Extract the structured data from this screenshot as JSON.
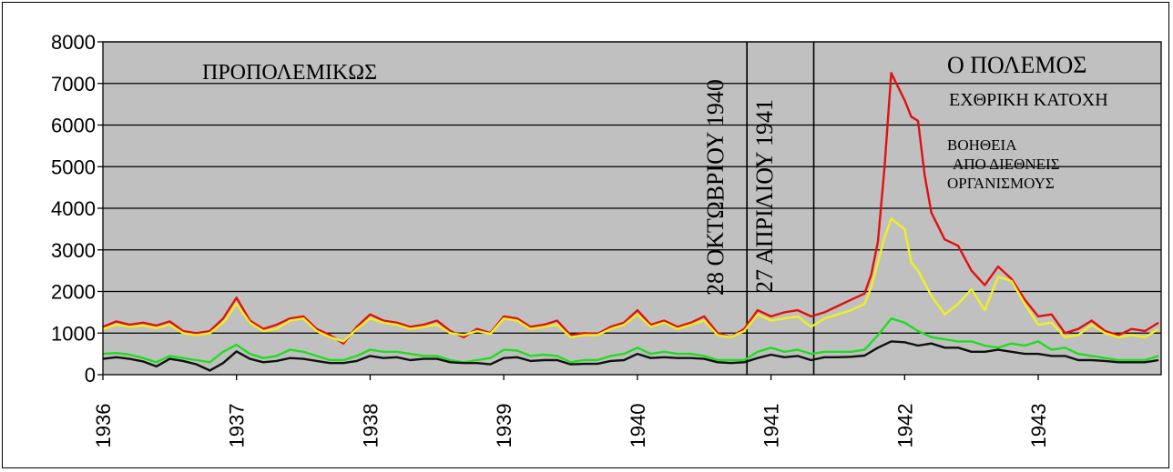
{
  "chart_data": {
    "type": "line",
    "title": "",
    "xlabel": "",
    "ylabel": "",
    "ylim": [
      0,
      8000
    ],
    "xlim": [
      1936,
      1943.92
    ],
    "yticks": [
      0,
      1000,
      2000,
      3000,
      4000,
      5000,
      6000,
      7000,
      8000
    ],
    "xticks": [
      1936,
      1937,
      1938,
      1939,
      1940,
      1941,
      1942,
      1943
    ],
    "grid": true,
    "legend": "none",
    "plot_background": "#c0c0c0",
    "vlines": [
      1940.82,
      1941.32
    ],
    "annotations": {
      "prewar": "ΠΡΟΠΟΛΕΜΙΚΩΣ",
      "war": "Ο ΠΟΛΕΜΟΣ",
      "occupation": "ΕΧΘΡΙΚΗ ΚΑΤΟΧΗ",
      "aid_line1": "ΒΟΗΘΕΙΑ",
      "aid_line2": "ΑΠΟ ΔΙΕΘΝΕΙΣ",
      "aid_line3": "ΟΡΓΑΝΙΣΜΟΥΣ",
      "date1": "28 ΟΚΤΩΒΡΙΟΥ 1940",
      "date2": "27 ΑΠΡΙΛΙΟΥ 1941"
    },
    "series": [
      {
        "color": "#e01010",
        "x": [
          1936.0,
          1936.1,
          1936.2,
          1936.3,
          1936.4,
          1936.5,
          1936.6,
          1936.7,
          1936.8,
          1936.9,
          1937.0,
          1937.1,
          1937.2,
          1937.3,
          1937.4,
          1937.5,
          1937.6,
          1937.7,
          1937.8,
          1937.9,
          1938.0,
          1938.1,
          1938.2,
          1938.3,
          1938.4,
          1938.5,
          1938.6,
          1938.7,
          1938.8,
          1938.9,
          1939.0,
          1939.1,
          1939.2,
          1939.3,
          1939.4,
          1939.5,
          1939.6,
          1939.7,
          1939.8,
          1939.9,
          1940.0,
          1940.1,
          1940.2,
          1940.3,
          1940.4,
          1940.5,
          1940.6,
          1940.7,
          1940.8,
          1940.9,
          1941.0,
          1941.1,
          1941.2,
          1941.3,
          1941.4,
          1941.5,
          1941.6,
          1941.7,
          1941.75,
          1941.8,
          1941.85,
          1941.9,
          1942.0,
          1942.05,
          1942.1,
          1942.15,
          1942.2,
          1942.3,
          1942.4,
          1942.5,
          1942.6,
          1942.7,
          1942.8,
          1942.9,
          1943.0,
          1943.1,
          1943.2,
          1943.3,
          1943.4,
          1943.5,
          1943.6,
          1943.7,
          1943.8,
          1943.9
        ],
        "values": [
          1150,
          1280,
          1200,
          1250,
          1180,
          1280,
          1050,
          1000,
          1050,
          1350,
          1850,
          1300,
          1100,
          1200,
          1350,
          1400,
          1100,
          950,
          750,
          1150,
          1450,
          1300,
          1250,
          1150,
          1200,
          1300,
          1050,
          900,
          1100,
          1000,
          1400,
          1350,
          1150,
          1200,
          1300,
          950,
          1000,
          980,
          1150,
          1250,
          1550,
          1200,
          1300,
          1150,
          1250,
          1400,
          1000,
          900,
          1100,
          1550,
          1400,
          1500,
          1550,
          1400,
          1500,
          1650,
          1800,
          1950,
          2400,
          3200,
          5000,
          7250,
          6600,
          6200,
          6100,
          4800,
          3900,
          3250,
          3100,
          2500,
          2150,
          2600,
          2300,
          1800,
          1400,
          1450,
          1000,
          1100,
          1300,
          1050,
          950,
          1100,
          1050,
          1250
        ]
      },
      {
        "color": "#f0f020",
        "x": [
          1936.0,
          1936.1,
          1936.2,
          1936.3,
          1936.4,
          1936.5,
          1936.6,
          1936.7,
          1936.8,
          1936.9,
          1937.0,
          1937.1,
          1937.2,
          1937.3,
          1937.4,
          1937.5,
          1937.6,
          1937.7,
          1937.8,
          1937.9,
          1938.0,
          1938.1,
          1938.2,
          1938.3,
          1938.4,
          1938.5,
          1938.6,
          1938.7,
          1938.8,
          1938.9,
          1939.0,
          1939.1,
          1939.2,
          1939.3,
          1939.4,
          1939.5,
          1939.6,
          1939.7,
          1939.8,
          1939.9,
          1940.0,
          1940.1,
          1940.2,
          1940.3,
          1940.4,
          1940.5,
          1940.6,
          1940.7,
          1940.8,
          1940.9,
          1941.0,
          1941.1,
          1941.2,
          1941.3,
          1941.4,
          1941.5,
          1941.6,
          1941.7,
          1941.75,
          1941.8,
          1941.85,
          1941.9,
          1942.0,
          1942.05,
          1942.1,
          1942.15,
          1942.2,
          1942.3,
          1942.4,
          1942.5,
          1942.6,
          1942.7,
          1942.8,
          1942.9,
          1943.0,
          1943.1,
          1943.2,
          1943.3,
          1943.4,
          1943.5,
          1943.6,
          1943.7,
          1943.8,
          1943.9
        ],
        "values": [
          1100,
          1200,
          1150,
          1180,
          1120,
          1200,
          1000,
          950,
          1000,
          1250,
          1700,
          1250,
          1050,
          1100,
          1300,
          1350,
          1050,
          900,
          800,
          1100,
          1350,
          1250,
          1200,
          1100,
          1150,
          1200,
          1000,
          950,
          1050,
          980,
          1350,
          1300,
          1100,
          1150,
          1200,
          900,
          950,
          950,
          1100,
          1200,
          1450,
          1150,
          1250,
          1100,
          1200,
          1300,
          950,
          900,
          1050,
          1450,
          1300,
          1350,
          1400,
          1150,
          1350,
          1450,
          1550,
          1700,
          2100,
          2700,
          3300,
          3750,
          3500,
          2700,
          2500,
          2200,
          1900,
          1450,
          1700,
          2050,
          1550,
          2350,
          2250,
          1700,
          1200,
          1250,
          900,
          950,
          1200,
          1000,
          900,
          950,
          900,
          1100
        ]
      },
      {
        "color": "#20dd20",
        "x": [
          1936.0,
          1936.1,
          1936.2,
          1936.3,
          1936.4,
          1936.5,
          1936.6,
          1936.7,
          1936.8,
          1936.9,
          1937.0,
          1937.1,
          1937.2,
          1937.3,
          1937.4,
          1937.5,
          1937.6,
          1937.7,
          1937.8,
          1937.9,
          1938.0,
          1938.1,
          1938.2,
          1938.3,
          1938.4,
          1938.5,
          1938.6,
          1938.7,
          1938.8,
          1938.9,
          1939.0,
          1939.1,
          1939.2,
          1939.3,
          1939.4,
          1939.5,
          1939.6,
          1939.7,
          1939.8,
          1939.9,
          1940.0,
          1940.1,
          1940.2,
          1940.3,
          1940.4,
          1940.5,
          1940.6,
          1940.7,
          1940.8,
          1940.9,
          1941.0,
          1941.1,
          1941.2,
          1941.3,
          1941.4,
          1941.5,
          1941.6,
          1941.7,
          1941.8,
          1941.9,
          1942.0,
          1942.1,
          1942.2,
          1942.3,
          1942.4,
          1942.5,
          1942.6,
          1942.7,
          1942.8,
          1942.9,
          1943.0,
          1943.1,
          1943.2,
          1943.3,
          1943.4,
          1943.5,
          1943.6,
          1943.7,
          1943.8,
          1943.9
        ],
        "values": [
          500,
          520,
          480,
          400,
          300,
          450,
          400,
          350,
          300,
          550,
          720,
          500,
          400,
          450,
          600,
          550,
          450,
          350,
          350,
          450,
          600,
          550,
          550,
          500,
          450,
          450,
          350,
          300,
          350,
          400,
          600,
          580,
          450,
          480,
          450,
          300,
          350,
          350,
          450,
          500,
          650,
          500,
          550,
          500,
          500,
          450,
          350,
          350,
          350,
          550,
          650,
          550,
          600,
          500,
          550,
          550,
          550,
          600,
          950,
          1350,
          1250,
          1050,
          900,
          850,
          800,
          800,
          700,
          650,
          750,
          700,
          800,
          600,
          650,
          500,
          450,
          400,
          350,
          350,
          350,
          450
        ]
      },
      {
        "color": "#101010",
        "x": [
          1936.0,
          1936.1,
          1936.2,
          1936.3,
          1936.4,
          1936.5,
          1936.6,
          1936.7,
          1936.8,
          1936.9,
          1937.0,
          1937.1,
          1937.2,
          1937.3,
          1937.4,
          1937.5,
          1937.6,
          1937.7,
          1937.8,
          1937.9,
          1938.0,
          1938.1,
          1938.2,
          1938.3,
          1938.4,
          1938.5,
          1938.6,
          1938.7,
          1938.8,
          1938.9,
          1939.0,
          1939.1,
          1939.2,
          1939.3,
          1939.4,
          1939.5,
          1939.6,
          1939.7,
          1939.8,
          1939.9,
          1940.0,
          1940.1,
          1940.2,
          1940.3,
          1940.4,
          1940.5,
          1940.6,
          1940.7,
          1940.8,
          1940.9,
          1941.0,
          1941.1,
          1941.2,
          1941.3,
          1941.4,
          1941.5,
          1941.6,
          1941.7,
          1941.8,
          1941.9,
          1942.0,
          1942.1,
          1942.2,
          1942.3,
          1942.4,
          1942.5,
          1942.6,
          1942.7,
          1942.8,
          1942.9,
          1943.0,
          1943.1,
          1943.2,
          1943.3,
          1943.4,
          1943.5,
          1943.6,
          1943.7,
          1943.8,
          1943.9
        ],
        "values": [
          380,
          420,
          380,
          320,
          200,
          380,
          330,
          250,
          100,
          280,
          560,
          380,
          300,
          330,
          400,
          380,
          330,
          280,
          280,
          330,
          450,
          400,
          420,
          350,
          380,
          380,
          300,
          280,
          280,
          250,
          400,
          420,
          330,
          350,
          350,
          250,
          260,
          260,
          330,
          350,
          500,
          400,
          420,
          400,
          400,
          380,
          300,
          280,
          300,
          400,
          480,
          420,
          450,
          350,
          420,
          420,
          430,
          460,
          650,
          800,
          780,
          700,
          750,
          650,
          650,
          550,
          550,
          600,
          550,
          500,
          500,
          450,
          450,
          350,
          350,
          330,
          300,
          300,
          300,
          350
        ]
      }
    ]
  }
}
